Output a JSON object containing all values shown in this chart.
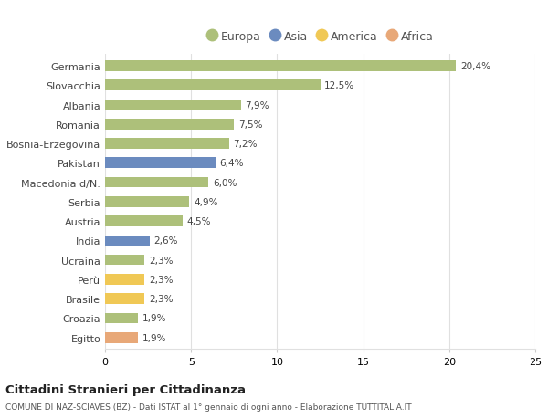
{
  "categories": [
    "Germania",
    "Slovacchia",
    "Albania",
    "Romania",
    "Bosnia-Erzegovina",
    "Pakistan",
    "Macedonia d/N.",
    "Serbia",
    "Austria",
    "India",
    "Ucraina",
    "Perù",
    "Brasile",
    "Croazia",
    "Egitto"
  ],
  "values": [
    20.4,
    12.5,
    7.9,
    7.5,
    7.2,
    6.4,
    6.0,
    4.9,
    4.5,
    2.6,
    2.3,
    2.3,
    2.3,
    1.9,
    1.9
  ],
  "labels": [
    "20,4%",
    "12,5%",
    "7,9%",
    "7,5%",
    "7,2%",
    "6,4%",
    "6,0%",
    "4,9%",
    "4,5%",
    "2,6%",
    "2,3%",
    "2,3%",
    "2,3%",
    "1,9%",
    "1,9%"
  ],
  "continents": [
    "Europa",
    "Europa",
    "Europa",
    "Europa",
    "Europa",
    "Asia",
    "Europa",
    "Europa",
    "Europa",
    "Asia",
    "Europa",
    "America",
    "America",
    "Europa",
    "Africa"
  ],
  "colors": {
    "Europa": "#adc07a",
    "Asia": "#6b8bbf",
    "America": "#f0c855",
    "Africa": "#e8a878"
  },
  "legend_order": [
    "Europa",
    "Asia",
    "America",
    "Africa"
  ],
  "xlim": [
    0,
    25
  ],
  "title": "Cittadini Stranieri per Cittadinanza",
  "subtitle": "COMUNE DI NAZ-SCIAVES (BZ) - Dati ISTAT al 1° gennaio di ogni anno - Elaborazione TUTTITALIA.IT",
  "background_color": "#ffffff",
  "bar_height": 0.55,
  "grid_color": "#e0e0e0",
  "xticks": [
    0,
    5,
    10,
    15,
    20,
    25
  ]
}
